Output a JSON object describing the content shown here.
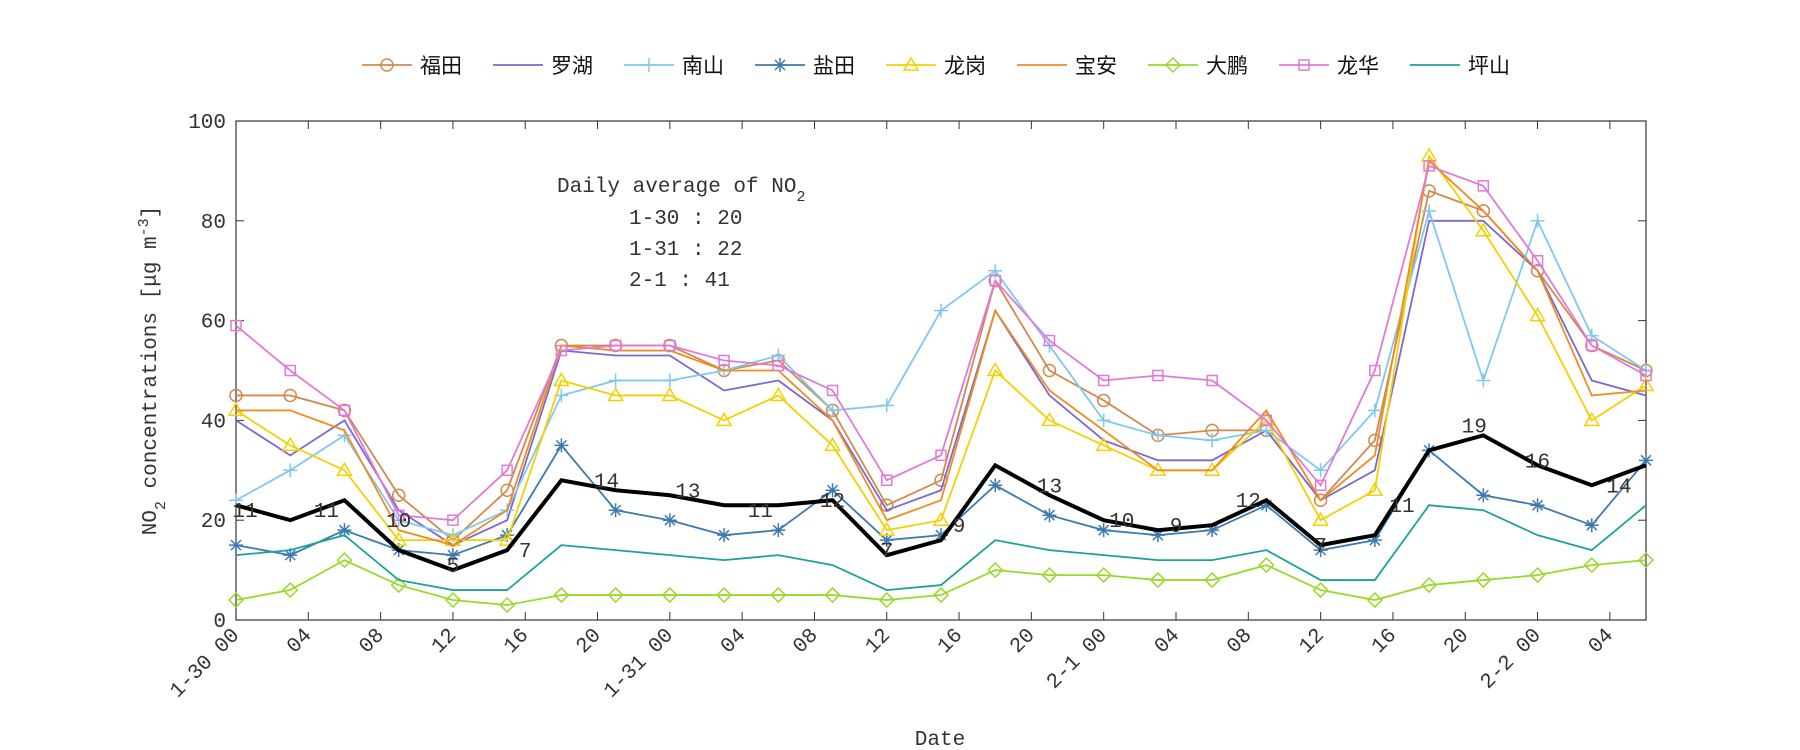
{
  "chart_data": {
    "type": "line",
    "x_label": "Date",
    "y_label_parts": [
      {
        "text": "NO"
      },
      {
        "text": "2",
        "sub": true
      },
      {
        "text": " concentrations ["
      },
      {
        "text": "μ"
      },
      {
        "text": "g m"
      },
      {
        "text": "-3",
        "sup": true
      },
      {
        "text": "]"
      }
    ],
    "x": [
      0,
      3,
      6,
      9,
      12,
      15,
      18,
      21,
      24,
      27,
      30,
      33,
      36,
      39,
      42,
      45,
      48,
      51,
      54,
      57,
      60,
      63,
      66,
      69,
      72,
      75,
      78
    ],
    "xlim": [
      0,
      78
    ],
    "ylim": [
      0,
      100
    ],
    "yticks": [
      0,
      20,
      40,
      60,
      80,
      100
    ],
    "xticks": [
      {
        "value": 0,
        "label": "1-30 00"
      },
      {
        "value": 4,
        "label": "04"
      },
      {
        "value": 8,
        "label": "08"
      },
      {
        "value": 12,
        "label": "12"
      },
      {
        "value": 16,
        "label": "16"
      },
      {
        "value": 20,
        "label": "20"
      },
      {
        "value": 24,
        "label": "1-31 00"
      },
      {
        "value": 28,
        "label": "04"
      },
      {
        "value": 32,
        "label": "08"
      },
      {
        "value": 36,
        "label": "12"
      },
      {
        "value": 40,
        "label": "16"
      },
      {
        "value": 44,
        "label": "20"
      },
      {
        "value": 48,
        "label": "2-1 00"
      },
      {
        "value": 52,
        "label": "04"
      },
      {
        "value": 56,
        "label": "08"
      },
      {
        "value": 60,
        "label": "12"
      },
      {
        "value": 64,
        "label": "16"
      },
      {
        "value": 68,
        "label": "20"
      },
      {
        "value": 72,
        "label": "2-2 00"
      },
      {
        "value": 76,
        "label": "04"
      }
    ],
    "series": [
      {
        "name": "福田",
        "color": "#d08a4e",
        "marker": "circle",
        "values": [
          45,
          45,
          42,
          25,
          16,
          26,
          55,
          55,
          55,
          50,
          52,
          42,
          23,
          28,
          68,
          50,
          44,
          37,
          38,
          38,
          24,
          36,
          86,
          82,
          70,
          55,
          50
        ]
      },
      {
        "name": "罗湖",
        "color": "#7b68d0",
        "marker": "none",
        "values": [
          40,
          33,
          40,
          22,
          15,
          20,
          54,
          53,
          53,
          46,
          48,
          40,
          22,
          26,
          62,
          45,
          36,
          32,
          32,
          38,
          24,
          30,
          80,
          80,
          70,
          48,
          45
        ]
      },
      {
        "name": "南山",
        "color": "#80c8f0",
        "marker": "plus",
        "values": [
          24,
          30,
          37,
          20,
          17,
          22,
          45,
          48,
          48,
          50,
          53,
          42,
          43,
          62,
          70,
          55,
          40,
          37,
          36,
          38,
          30,
          42,
          82,
          48,
          80,
          57,
          50
        ]
      },
      {
        "name": "盐田",
        "color": "#3d7ab0",
        "marker": "star",
        "values": [
          15,
          13,
          18,
          14,
          13,
          17,
          35,
          22,
          20,
          17,
          18,
          26,
          16,
          17,
          27,
          21,
          18,
          17,
          18,
          23,
          14,
          16,
          34,
          25,
          23,
          19,
          32
        ]
      },
      {
        "name": "龙岗",
        "color": "#f5d000",
        "marker": "triangle",
        "values": [
          42,
          35,
          30,
          16,
          16,
          16,
          48,
          45,
          45,
          40,
          45,
          35,
          18,
          20,
          50,
          40,
          35,
          30,
          30,
          40,
          20,
          26,
          93,
          78,
          61,
          40,
          47
        ]
      },
      {
        "name": "宝安",
        "color": "#f08c20",
        "marker": "none",
        "values": [
          42,
          42,
          38,
          18,
          15,
          22,
          55,
          54,
          54,
          50,
          50,
          40,
          20,
          24,
          62,
          46,
          38,
          30,
          30,
          42,
          24,
          33,
          92,
          82,
          70,
          45,
          46
        ]
      },
      {
        "name": "大鹏",
        "color": "#9ad82a",
        "marker": "diamond",
        "values": [
          4,
          6,
          12,
          7,
          4,
          3,
          5,
          5,
          5,
          5,
          5,
          5,
          4,
          5,
          10,
          9,
          9,
          8,
          8,
          11,
          6,
          4,
          7,
          8,
          9,
          11,
          12
        ]
      },
      {
        "name": "龙华",
        "color": "#e07ad8",
        "marker": "square",
        "values": [
          59,
          50,
          42,
          21,
          20,
          30,
          54,
          55,
          55,
          52,
          51,
          46,
          28,
          33,
          68,
          56,
          48,
          49,
          48,
          40,
          27,
          50,
          91,
          87,
          72,
          55,
          49
        ]
      },
      {
        "name": "坪山",
        "color": "#1aa39a",
        "marker": "none",
        "values": [
          13,
          14,
          17,
          8,
          6,
          6,
          15,
          14,
          13,
          12,
          13,
          11,
          6,
          7,
          16,
          14,
          13,
          12,
          12,
          14,
          8,
          8,
          23,
          22,
          17,
          14,
          23
        ]
      }
    ],
    "mean_line": {
      "color": "#000000",
      "values": [
        23,
        20,
        24,
        14,
        10,
        14,
        28,
        26,
        25,
        23,
        23,
        24,
        13,
        16,
        31,
        25,
        20,
        18,
        19,
        24,
        15,
        17,
        34,
        37,
        31,
        27,
        31
      ]
    },
    "annotations": [
      {
        "x": 0.5,
        "y": 22,
        "text": "11"
      },
      {
        "x": 5,
        "y": 22,
        "text": "11"
      },
      {
        "x": 9,
        "y": 20,
        "text": "10"
      },
      {
        "x": 12,
        "y": 11,
        "text": "5"
      },
      {
        "x": 16,
        "y": 14,
        "text": "7"
      },
      {
        "x": 20.5,
        "y": 28,
        "text": "14"
      },
      {
        "x": 25,
        "y": 26,
        "text": "13"
      },
      {
        "x": 29,
        "y": 22,
        "text": "11"
      },
      {
        "x": 33,
        "y": 24,
        "text": "12"
      },
      {
        "x": 36,
        "y": 14,
        "text": "7"
      },
      {
        "x": 40,
        "y": 19,
        "text": "9"
      },
      {
        "x": 45,
        "y": 27,
        "text": "13"
      },
      {
        "x": 49,
        "y": 20,
        "text": "10"
      },
      {
        "x": 52,
        "y": 19,
        "text": "9"
      },
      {
        "x": 56,
        "y": 24,
        "text": "12"
      },
      {
        "x": 60,
        "y": 15,
        "text": "7"
      },
      {
        "x": 64.5,
        "y": 23,
        "text": "11"
      },
      {
        "x": 68.5,
        "y": 39,
        "text": "19"
      },
      {
        "x": 72,
        "y": 32,
        "text": "16"
      },
      {
        "x": 76.5,
        "y": 27,
        "text": "14"
      }
    ],
    "inset_title": "Daily average of NO",
    "inset_title_sub": "2",
    "inset_lines": [
      "1-30 : 20",
      "1-31 : 22",
      "2-1 : 41"
    ],
    "legend": "top"
  }
}
